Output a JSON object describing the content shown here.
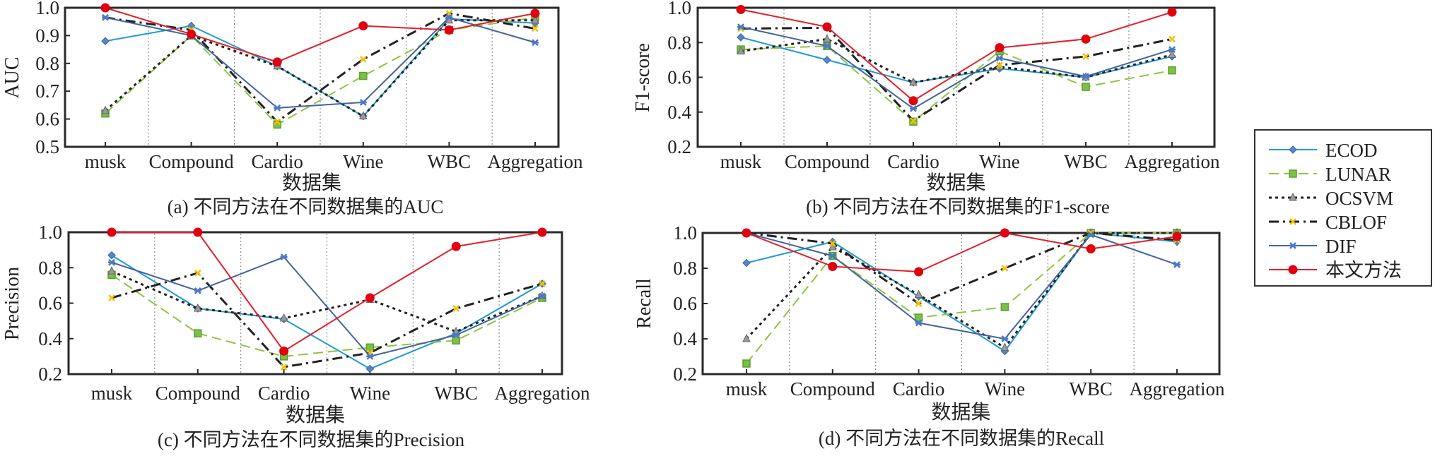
{
  "legend": {
    "items": [
      {
        "name": "ECOD",
        "color": "#1f9bd0",
        "dash": "solid",
        "marker": "diamond",
        "marker_color": "#3d6fb0"
      },
      {
        "name": "LUNAR",
        "color": "#8cc63f",
        "dash": "dashed",
        "marker": "square",
        "marker_color": "#5aa02c"
      },
      {
        "name": "OCSVM",
        "color": "#222222",
        "dash": "dotted",
        "marker": "triangle",
        "marker_color": "#8a8a8a"
      },
      {
        "name": "CBLOF",
        "color": "#222222",
        "dash": "dashdot",
        "marker": "x",
        "marker_color": "#f2c200"
      },
      {
        "name": "DIF",
        "color": "#44639a",
        "dash": "solid",
        "marker": "star",
        "marker_color": "#4a78c8"
      },
      {
        "name": "本文方法",
        "color": "#e0202a",
        "dash": "solid",
        "marker": "circle",
        "marker_color": "#e00010"
      }
    ]
  },
  "chart_data": [
    {
      "id": "a",
      "type": "line",
      "caption": "(a) 不同方法在不同数据集的AUC",
      "xlabel": "数据集",
      "ylabel": "AUC",
      "categories": [
        "musk",
        "Compound",
        "Cardio",
        "Wine",
        "WBC",
        "Aggregation"
      ],
      "ylim": [
        0.5,
        1.0
      ],
      "yticks": [
        "0.5",
        "0.6",
        "0.7",
        "0.8",
        "0.9",
        "1.0"
      ],
      "ytick_values": [
        0.5,
        0.6,
        0.7,
        0.8,
        0.9,
        1.0
      ],
      "grid": "vertical dotted separators",
      "series": [
        {
          "name": "ECOD",
          "values": [
            0.88,
            0.935,
            0.79,
            0.61,
            0.96,
            0.945
          ]
        },
        {
          "name": "LUNAR",
          "values": [
            0.62,
            0.9,
            0.58,
            0.755,
            0.92,
            0.965
          ]
        },
        {
          "name": "OCSVM",
          "values": [
            0.63,
            0.9,
            0.79,
            0.61,
            0.955,
            0.955
          ]
        },
        {
          "name": "CBLOF",
          "values": [
            0.965,
            0.92,
            0.59,
            0.815,
            0.98,
            0.925
          ]
        },
        {
          "name": "DIF",
          "values": [
            0.965,
            0.9,
            0.64,
            0.66,
            0.965,
            0.875
          ]
        },
        {
          "name": "本文方法",
          "values": [
            1.0,
            0.905,
            0.805,
            0.935,
            0.92,
            0.98
          ]
        }
      ]
    },
    {
      "id": "b",
      "type": "line",
      "caption": "(b) 不同方法在不同数据集的F1-score",
      "xlabel": "数据集",
      "ylabel": "F1-score",
      "categories": [
        "musk",
        "Compound",
        "Cardio",
        "Wine",
        "WBC",
        "Aggregation"
      ],
      "ylim": [
        0.2,
        1.0
      ],
      "yticks": [
        "0.2",
        "0.4",
        "0.6",
        "0.8",
        "1.0"
      ],
      "ytick_values": [
        0.2,
        0.4,
        0.6,
        0.8,
        1.0
      ],
      "grid": "vertical dotted separators",
      "series": [
        {
          "name": "ECOD",
          "values": [
            0.83,
            0.7,
            0.57,
            0.65,
            0.6,
            0.72
          ]
        },
        {
          "name": "LUNAR",
          "values": [
            0.76,
            0.78,
            0.345,
            0.75,
            0.545,
            0.64
          ]
        },
        {
          "name": "OCSVM",
          "values": [
            0.75,
            0.82,
            0.57,
            0.66,
            0.6,
            0.73
          ]
        },
        {
          "name": "CBLOF",
          "values": [
            0.88,
            0.885,
            0.35,
            0.67,
            0.72,
            0.82
          ]
        },
        {
          "name": "DIF",
          "values": [
            0.89,
            0.78,
            0.42,
            0.71,
            0.605,
            0.76
          ]
        },
        {
          "name": "本文方法",
          "values": [
            0.99,
            0.89,
            0.465,
            0.77,
            0.82,
            0.975
          ]
        }
      ]
    },
    {
      "id": "c",
      "type": "line",
      "caption": "(c) 不同方法在不同数据集的Precision",
      "xlabel": "数据集",
      "ylabel": "Precision",
      "categories": [
        "musk",
        "Compound",
        "Cardio",
        "Wine",
        "WBC",
        "Aggregation"
      ],
      "ylim": [
        0.2,
        1.0
      ],
      "yticks": [
        "0.2",
        "0.4",
        "0.6",
        "0.8",
        "1.0"
      ],
      "ytick_values": [
        0.2,
        0.4,
        0.6,
        0.8,
        1.0
      ],
      "grid": "vertical dotted separators",
      "series": [
        {
          "name": "ECOD",
          "values": [
            0.87,
            0.57,
            0.51,
            0.23,
            0.43,
            0.71
          ]
        },
        {
          "name": "LUNAR",
          "values": [
            0.76,
            0.43,
            0.3,
            0.35,
            0.39,
            0.63
          ]
        },
        {
          "name": "OCSVM",
          "values": [
            0.78,
            0.57,
            0.515,
            0.62,
            0.44,
            0.64
          ]
        },
        {
          "name": "CBLOF",
          "values": [
            0.63,
            0.77,
            0.24,
            0.32,
            0.57,
            0.71
          ]
        },
        {
          "name": "DIF",
          "values": [
            0.83,
            0.67,
            0.86,
            0.3,
            0.42,
            0.64
          ]
        },
        {
          "name": "本文方法",
          "values": [
            1.0,
            1.0,
            0.33,
            0.63,
            0.92,
            1.0
          ]
        }
      ]
    },
    {
      "id": "d",
      "type": "line",
      "caption": "(d) 不同方法在不同数据集的Recall",
      "xlabel": "数据集",
      "ylabel": "Recall",
      "categories": [
        "musk",
        "Compound",
        "Cardio",
        "Wine",
        "WBC",
        "Aggregation"
      ],
      "ylim": [
        0.2,
        1.0
      ],
      "yticks": [
        "0.2",
        "0.4",
        "0.6",
        "0.8",
        "1.0"
      ],
      "ytick_values": [
        0.2,
        0.4,
        0.6,
        0.8,
        1.0
      ],
      "grid": "vertical dotted separators",
      "series": [
        {
          "name": "ECOD",
          "values": [
            0.83,
            0.95,
            0.64,
            0.33,
            1.0,
            0.95
          ]
        },
        {
          "name": "LUNAR",
          "values": [
            0.26,
            0.87,
            0.52,
            0.58,
            1.0,
            1.0
          ]
        },
        {
          "name": "OCSVM",
          "values": [
            0.4,
            0.92,
            0.65,
            0.35,
            1.0,
            1.0
          ]
        },
        {
          "name": "CBLOF",
          "values": [
            1.0,
            0.94,
            0.6,
            0.8,
            1.0,
            0.96
          ]
        },
        {
          "name": "DIF",
          "values": [
            1.0,
            0.87,
            0.49,
            0.4,
            0.99,
            0.82
          ]
        },
        {
          "name": "本文方法",
          "values": [
            1.0,
            0.81,
            0.78,
            1.0,
            0.91,
            0.98
          ]
        }
      ]
    }
  ]
}
